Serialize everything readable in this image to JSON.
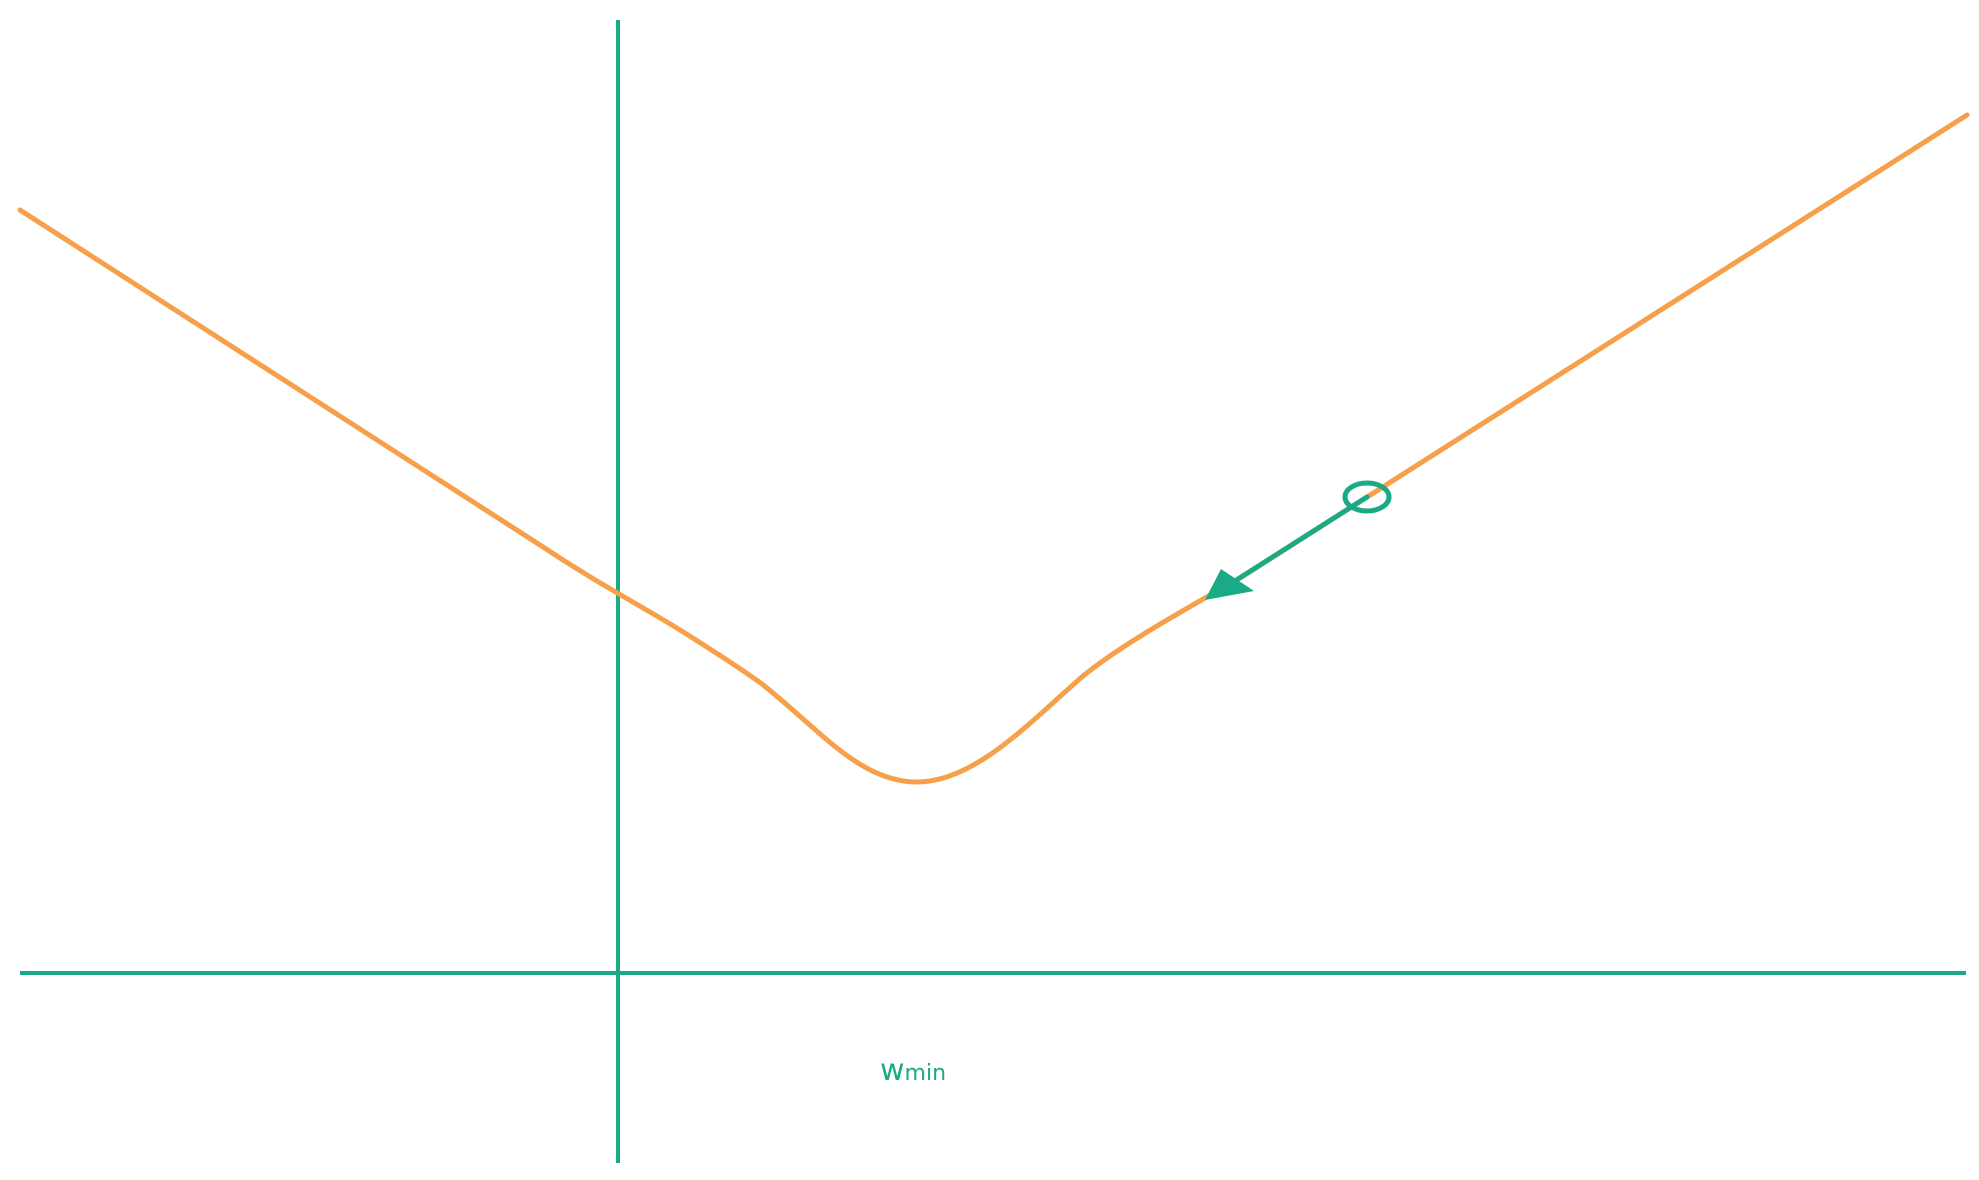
{
  "diagram": {
    "colors": {
      "axis": "#1aaa85",
      "curve": "#f7a04a",
      "point": "#1aaa85",
      "arrow": "#1aaa85",
      "label": "#1aaa85",
      "background": "#ffffff"
    },
    "label": {
      "main": "w",
      "subscript": "min"
    },
    "elements": {
      "curve": "loss-curve",
      "point": "current-weight-marker",
      "arrow": "gradient-descent-arrow"
    }
  }
}
